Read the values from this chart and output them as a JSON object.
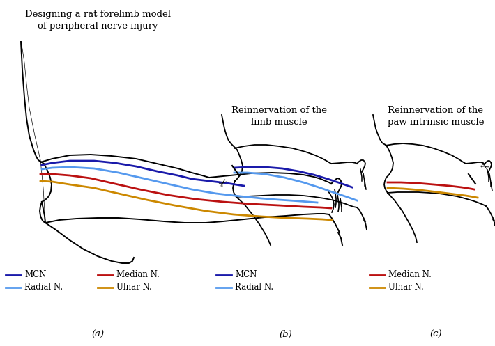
{
  "title_a": "Designing a rat forelimb model\nof peripheral nerve injury",
  "title_b": "Reinnervation of the\nlimb muscle",
  "title_c": "Reinnervation of the\npaw intrinsic muscle",
  "label_a": "(a)",
  "label_b": "(b)",
  "label_c": "(c)",
  "colors": {
    "MCN": "#1a1aaa",
    "Radial": "#5599ee",
    "Median": "#bb1111",
    "Ulnar": "#cc8800",
    "outline": "#000000"
  },
  "background": "#FFFFFF"
}
